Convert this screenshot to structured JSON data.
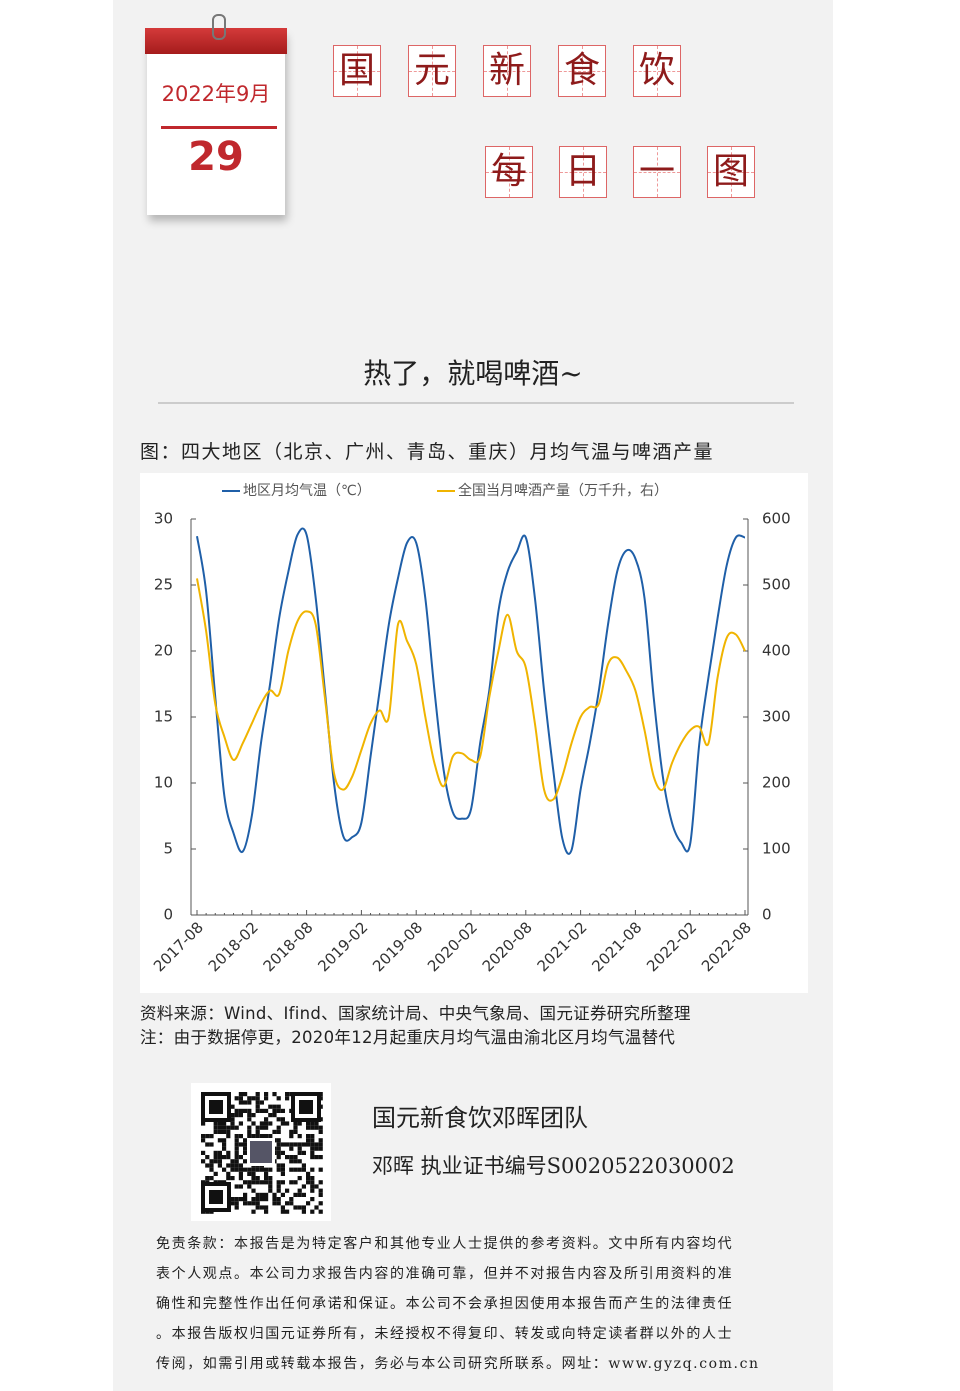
{
  "header": {
    "date": "2022年9月",
    "day": "29",
    "title": [
      "国",
      "元",
      "新",
      "食",
      "饮"
    ],
    "subtitle": [
      "每",
      "日",
      "一",
      "图"
    ]
  },
  "headline": "热了，就喝啤酒~",
  "caption": "图：四大地区（北京、广州、青岛、重庆）月均气温与啤酒产量",
  "chart_data": {
    "type": "line",
    "categories": [
      "2017-08",
      null,
      null,
      null,
      null,
      null,
      "2018-02",
      null,
      null,
      null,
      null,
      null,
      "2018-08",
      null,
      null,
      null,
      null,
      null,
      "2019-02",
      null,
      null,
      null,
      null,
      null,
      "2019-08",
      null,
      null,
      null,
      null,
      null,
      "2020-02",
      null,
      null,
      null,
      null,
      null,
      "2020-08",
      null,
      null,
      null,
      null,
      null,
      "2021-02",
      null,
      null,
      null,
      null,
      null,
      "2021-08",
      null,
      null,
      null,
      null,
      null,
      "2022-02",
      null,
      null,
      null,
      null,
      null,
      "2022-08"
    ],
    "series": [
      {
        "name": "地区月均气温（℃）",
        "color": "#1f5fa8",
        "values": [
          28.7,
          24.5,
          16.5,
          9,
          6.2,
          4.8,
          7.5,
          13,
          17.5,
          22.5,
          26,
          28.8,
          28.8,
          24,
          17,
          10,
          6,
          5.9,
          7,
          12,
          17,
          22,
          25.5,
          28.2,
          28.2,
          24,
          17,
          11,
          7.8,
          7.3,
          8,
          13,
          17,
          23,
          26,
          27.5,
          28.6,
          24,
          17,
          11,
          5.8,
          4.9,
          9.5,
          13,
          17,
          22,
          26,
          27.6,
          27,
          24,
          16.5,
          10.5,
          7,
          5.5,
          5.4,
          13,
          18,
          22.5,
          26.5,
          28.6,
          28.6
        ]
      },
      {
        "name": "全国当月啤酒产量（万千升，右）",
        "color": "#f0b400",
        "axis": "y2",
        "values": [
          510,
          430,
          320,
          270,
          235,
          260,
          290,
          320,
          340,
          335,
          400,
          445,
          460,
          440,
          330,
          215,
          190,
          210,
          250,
          290,
          310,
          300,
          440,
          415,
          380,
          300,
          230,
          195,
          240,
          245,
          235,
          240,
          330,
          400,
          455,
          400,
          375,
          290,
          190,
          175,
          210,
          260,
          300,
          315,
          320,
          380,
          390,
          370,
          340,
          280,
          210,
          190,
          230,
          260,
          280,
          285,
          260,
          360,
          420,
          425,
          400
        ]
      }
    ],
    "ylim": [
      0,
      30
    ],
    "yticks": [
      0,
      5,
      10,
      15,
      20,
      25,
      30
    ],
    "y2lim": [
      0,
      600
    ],
    "y2ticks": [
      0,
      100,
      200,
      300,
      400,
      500,
      600
    ],
    "legend": "top",
    "grid": false
  },
  "notes": [
    "资料来源：Wind、Ifind、国家统计局、中央气象局、国元证券研究所整理",
    "注：由于数据停更，2020年12月起重庆月均气温由渝北区月均气温替代"
  ],
  "team": {
    "name": "国元新食饮邓晖团队",
    "license": "邓晖  执业证书编号S0020522030002"
  },
  "disclaimer": [
    "免责条款：本报告是为特定客户和其他专业人士提供的参考资料。文中所有内容均代",
    "表个人观点。本公司力求报告内容的准确可靠，但并不对报告内容及所引用资料的准",
    "确性和完整性作出任何承诺和保证。本公司不会承担因使用本报告而产生的法律责任",
    "。本报告版权归国元证券所有，未经授权不得复印、转发或向特定读者群以外的人士",
    "传阅，如需引用或转载本报告，务必与本公司研究所联系。网址：www.gyzq.com.cn"
  ]
}
